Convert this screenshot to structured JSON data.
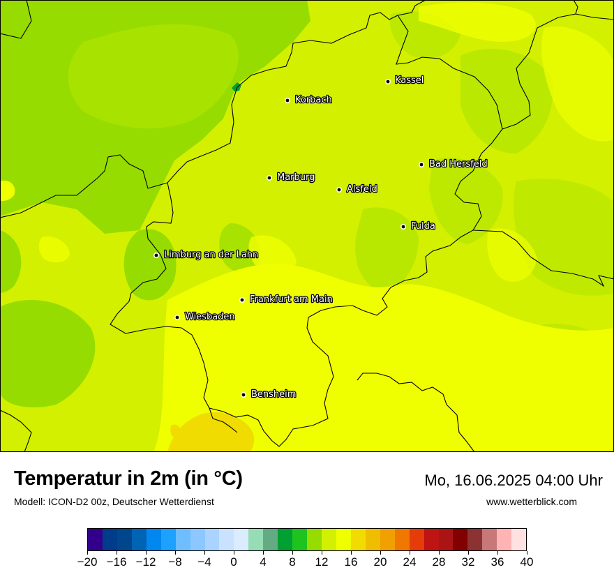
{
  "map": {
    "cities": [
      {
        "name": "Kassel"
      },
      {
        "name": "Korbach"
      },
      {
        "name": "Bad Hersfeld"
      },
      {
        "name": "Marburg"
      },
      {
        "name": "Alsfeld"
      },
      {
        "name": "Fulda"
      },
      {
        "name": "Limburg an der Lahn"
      },
      {
        "name": "Frankfurt am Main"
      },
      {
        "name": "Wiesbaden"
      },
      {
        "name": "Bensheim"
      }
    ]
  },
  "footer": {
    "title": "Temperatur in 2m (in °C)",
    "subtitle": "Modell: ICON-D2 00z, Deutscher Wetterdienst",
    "datetime": "Mo, 16.06.2025 04:00 Uhr",
    "website": "www.wetterblick.com"
  },
  "legend": {
    "colors": [
      "#33008c",
      "#003c8c",
      "#00468c",
      "#0064b4",
      "#0087f0",
      "#1ea0ff",
      "#6ebeff",
      "#8cc8ff",
      "#aad4ff",
      "#c8e2ff",
      "#dbecff",
      "#96dcb4",
      "#64aa82",
      "#00a032",
      "#1ec31e",
      "#96dc00",
      "#d2f000",
      "#f0ff00",
      "#f0dc00",
      "#f0be00",
      "#f0a000",
      "#f07800",
      "#e63c0a",
      "#be1414",
      "#aa1414",
      "#820000",
      "#8c3232",
      "#c87878",
      "#ffb4b4",
      "#ffe1e1"
    ],
    "tick_labels": [
      "−20",
      "−16",
      "−12",
      "−8",
      "−4",
      "0",
      "4",
      "8",
      "12",
      "16",
      "20",
      "24",
      "28",
      "32",
      "36",
      "40"
    ]
  }
}
